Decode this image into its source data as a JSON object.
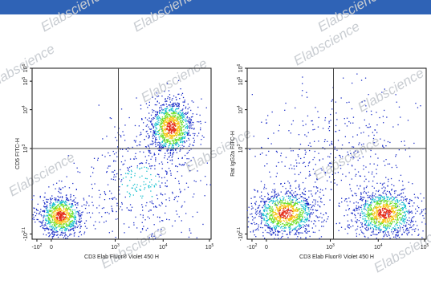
{
  "colors": {
    "bar": "#2f63b6",
    "watermark": "#c9cdd2",
    "gate": "#444444"
  },
  "watermark": "Elabscience",
  "chart_data": [
    {
      "type": "scatter",
      "xlabel": "CD3 Elab Fluor® Violet 450 H",
      "ylabel": "CD5 FITC-H",
      "x_ticks": [
        "-10^2",
        "0",
        "10^3",
        "10^4",
        "10^5"
      ],
      "y_ticks": [
        "-10^2.1",
        "10^3",
        "10^4",
        "10^5",
        "10^6"
      ],
      "xlim": [
        -0.6,
        5
      ],
      "ylim": [
        -0.6,
        6
      ],
      "grid": false,
      "gate": {
        "x": 2.1,
        "y": 2.9
      },
      "populations": [
        {
          "name": "",
          "x": 0.3,
          "y": 0.3,
          "sx": 0.35,
          "sy": 0.4,
          "n": 900
        },
        {
          "name": "",
          "x": 3.75,
          "y": 3.7,
          "sx": 0.35,
          "sy": 0.55,
          "n": 1100
        },
        {
          "name": "",
          "x": 2.8,
          "y": 1.5,
          "sx": 1.0,
          "sy": 1.2,
          "n": 500
        }
      ]
    },
    {
      "type": "scatter",
      "xlabel": "CD3 Elab Fluor® Violet 450 H",
      "ylabel": "Rat IgG2a FITC-H",
      "x_ticks": [
        "-10^2",
        "0",
        "10^3",
        "10^4",
        "10^5"
      ],
      "y_ticks": [
        "-10^2.1",
        "10^3",
        "10^4",
        "10^5",
        "10^6"
      ],
      "xlim": [
        -0.6,
        5
      ],
      "ylim": [
        -0.6,
        6
      ],
      "grid": false,
      "gate": {
        "x": 2.1,
        "y": 2.9
      },
      "populations": [
        {
          "name": "",
          "x": 0.6,
          "y": 0.4,
          "sx": 0.5,
          "sy": 0.45,
          "n": 1100
        },
        {
          "name": "",
          "x": 3.7,
          "y": 0.4,
          "sx": 0.5,
          "sy": 0.45,
          "n": 1100
        },
        {
          "name": "",
          "x": 2.2,
          "y": 2.5,
          "sx": 1.3,
          "sy": 1.4,
          "n": 450
        }
      ]
    }
  ]
}
